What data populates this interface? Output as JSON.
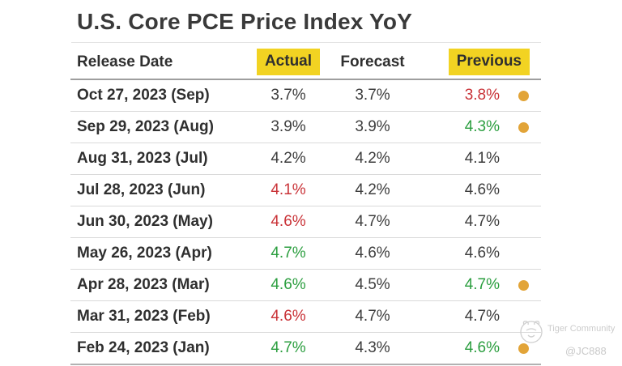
{
  "page": {
    "title": "U.S. Core PCE Price Index YoY"
  },
  "watermark": {
    "brand": "Tiger Community",
    "handle": "@JC888",
    "logo": "tiger-sketch-logo"
  },
  "chart_data": {
    "type": "table",
    "title": "U.S. Core PCE Price Index YoY",
    "columns": [
      "Release Date",
      "Actual",
      "Forecast",
      "Previous"
    ],
    "highlighted_columns": [
      "Actual",
      "Previous"
    ],
    "highlight_color": "#f2d322",
    "value_colors": {
      "red": "#c93237",
      "green": "#2b9e3f",
      "dark": "#3d3d3d"
    },
    "revision_dot_color": "#e2a438",
    "rows": [
      {
        "release_date": "Oct 27, 2023 (Sep)",
        "actual": "3.7%",
        "actual_color": "dark",
        "forecast": "3.7%",
        "previous": "3.8%",
        "previous_color": "red",
        "revision_dot": true
      },
      {
        "release_date": "Sep 29, 2023 (Aug)",
        "actual": "3.9%",
        "actual_color": "dark",
        "forecast": "3.9%",
        "previous": "4.3%",
        "previous_color": "green",
        "revision_dot": true
      },
      {
        "release_date": "Aug 31, 2023 (Jul)",
        "actual": "4.2%",
        "actual_color": "dark",
        "forecast": "4.2%",
        "previous": "4.1%",
        "previous_color": "dark",
        "revision_dot": false
      },
      {
        "release_date": "Jul 28, 2023 (Jun)",
        "actual": "4.1%",
        "actual_color": "red",
        "forecast": "4.2%",
        "previous": "4.6%",
        "previous_color": "dark",
        "revision_dot": false
      },
      {
        "release_date": "Jun 30, 2023 (May)",
        "actual": "4.6%",
        "actual_color": "red",
        "forecast": "4.7%",
        "previous": "4.7%",
        "previous_color": "dark",
        "revision_dot": false
      },
      {
        "release_date": "May 26, 2023 (Apr)",
        "actual": "4.7%",
        "actual_color": "green",
        "forecast": "4.6%",
        "previous": "4.6%",
        "previous_color": "dark",
        "revision_dot": false
      },
      {
        "release_date": "Apr 28, 2023 (Mar)",
        "actual": "4.6%",
        "actual_color": "green",
        "forecast": "4.5%",
        "previous": "4.7%",
        "previous_color": "green",
        "revision_dot": true
      },
      {
        "release_date": "Mar 31, 2023 (Feb)",
        "actual": "4.6%",
        "actual_color": "red",
        "forecast": "4.7%",
        "previous": "4.7%",
        "previous_color": "dark",
        "revision_dot": false
      },
      {
        "release_date": "Feb 24, 2023 (Jan)",
        "actual": "4.7%",
        "actual_color": "green",
        "forecast": "4.3%",
        "previous": "4.6%",
        "previous_color": "green",
        "revision_dot": true
      }
    ]
  }
}
